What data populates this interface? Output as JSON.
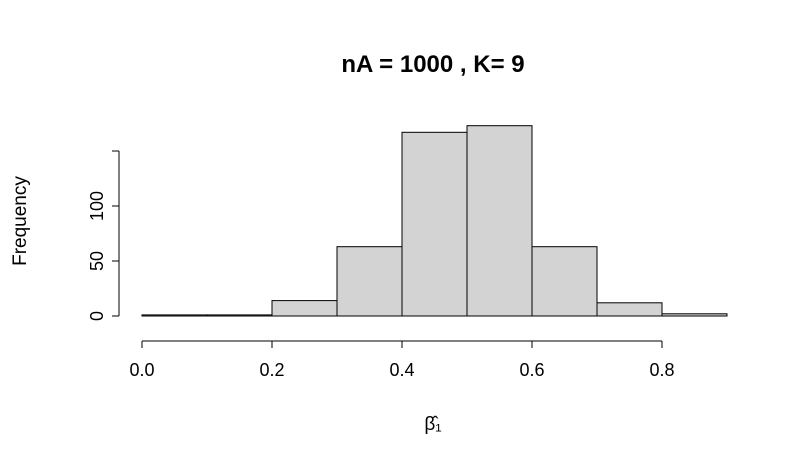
{
  "chart_data": {
    "type": "bar",
    "title": "nA = 1000 , K= 9",
    "xlabel": "β̂₁",
    "ylabel": "Frequency",
    "bins": [
      {
        "start": 0.0,
        "end": 0.1,
        "count": 1
      },
      {
        "start": 0.1,
        "end": 0.2,
        "count": 1
      },
      {
        "start": 0.2,
        "end": 0.3,
        "count": 14
      },
      {
        "start": 0.3,
        "end": 0.4,
        "count": 63
      },
      {
        "start": 0.4,
        "end": 0.5,
        "count": 167
      },
      {
        "start": 0.5,
        "end": 0.6,
        "count": 173
      },
      {
        "start": 0.6,
        "end": 0.7,
        "count": 63
      },
      {
        "start": 0.7,
        "end": 0.8,
        "count": 12
      },
      {
        "start": 0.8,
        "end": 0.9,
        "count": 2
      }
    ],
    "xlim": [
      0.0,
      0.9
    ],
    "ylim": [
      0,
      180
    ],
    "x_ticks": [
      "0.0",
      "0.2",
      "0.4",
      "0.6",
      "0.8"
    ],
    "y_ticks": [
      "0",
      "50",
      "100"
    ],
    "grid": false,
    "bar_color": "#d3d3d3",
    "border_color": "#000000"
  }
}
